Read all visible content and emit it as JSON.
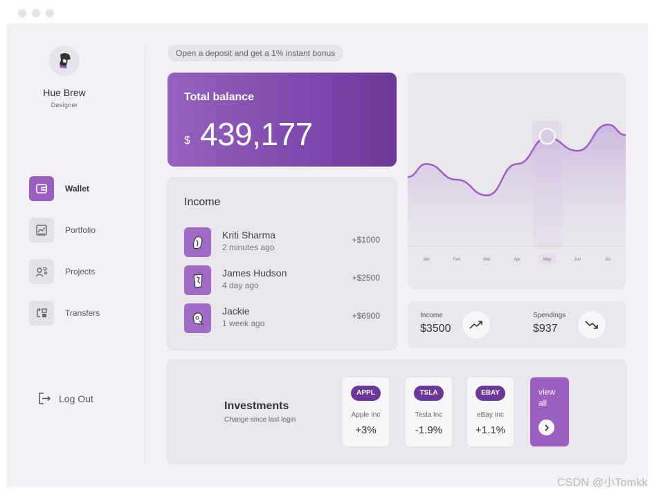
{
  "user": {
    "name": "Hue Brew",
    "role": "Designer"
  },
  "nav": {
    "items": [
      {
        "label": "Wallet",
        "icon": "wallet-icon",
        "active": true
      },
      {
        "label": "Portfolio",
        "icon": "chart-icon",
        "active": false
      },
      {
        "label": "Projects",
        "icon": "people-icon",
        "active": false
      },
      {
        "label": "Transfers",
        "icon": "transfer-icon",
        "active": false
      }
    ],
    "logout": "Log Out"
  },
  "promo": "Open a deposit and get a 1% instant bonus",
  "balance": {
    "title": "Total balance",
    "currency": "$",
    "value": "439,177"
  },
  "income": {
    "title": "Income",
    "rows": [
      {
        "name": "Kriti Sharma",
        "time": "2 minutes ago",
        "amount": "+$1000"
      },
      {
        "name": "James Hudson",
        "time": "4 day ago",
        "amount": "+$2500"
      },
      {
        "name": "Jackie",
        "time": "1 week ago",
        "amount": "+$6900"
      }
    ]
  },
  "chart_data": {
    "type": "area",
    "categories": [
      "Jan",
      "Feb",
      "Mar",
      "Apr",
      "May",
      "Jun",
      "Jul"
    ],
    "highlighted": "May",
    "series": [
      {
        "values": [
          62,
          50,
          38,
          62,
          82,
          72,
          92
        ]
      }
    ],
    "ylim": [
      0,
      100
    ],
    "title": "",
    "xlabel": "",
    "ylabel": "",
    "grid": false,
    "colors": {
      "line": "#9b5fc0",
      "fill": "#c9b2dd",
      "highlight": "#e6dced"
    }
  },
  "stats": {
    "income": {
      "label": "Income",
      "value": "$3500",
      "icon": "trend-up-icon"
    },
    "spendings": {
      "label": "Spendings",
      "value": "$937",
      "icon": "trend-down-icon"
    }
  },
  "investments": {
    "title": "Investments",
    "subtitle": "Change since last login",
    "stocks": [
      {
        "ticker": "APPL",
        "name": "Apple Inc",
        "change": "+3%"
      },
      {
        "ticker": "TSLA",
        "name": "Tesla Inc",
        "change": "-1.9%"
      },
      {
        "ticker": "EBAY",
        "name": "eBay Inc",
        "change": "+1.1%"
      }
    ],
    "view_all": "view all"
  },
  "watermark": "CSDN @小Tomkk",
  "colors": {
    "accent": "#9b5fc0",
    "accent_dark": "#6b3899",
    "background": "#f3f1f5",
    "card": "#e9e6ec"
  }
}
